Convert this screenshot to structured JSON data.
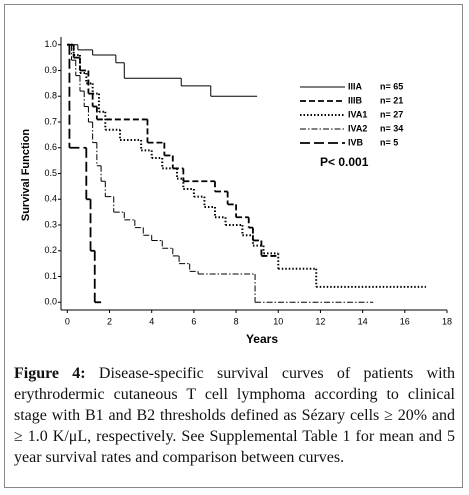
{
  "chart_data": {
    "type": "step",
    "y_label": "Survival Function",
    "x_label": "Years",
    "annotation": "P< 0.001",
    "xlim": [
      -0.3,
      18
    ],
    "ylim": [
      -0.03,
      1.03
    ],
    "xticks": [
      0,
      2,
      4,
      6,
      8,
      10,
      12,
      14,
      16,
      18
    ],
    "yticks": [
      {
        "value": 0,
        "label": "0.0"
      },
      0.1,
      0.2,
      0.3,
      0.4,
      0.5,
      0.6,
      0.7,
      0.8,
      0.9,
      {
        "value": 1,
        "label": "1.0"
      }
    ],
    "series": [
      {
        "name": "IIIA",
        "n": "n= 65",
        "color": "#000",
        "dash": "solid",
        "x": [
          0,
          0.5,
          1.2,
          2.3,
          2.7,
          5.4,
          6.8,
          9
        ],
        "values": [
          1,
          0.98,
          0.96,
          0.93,
          0.87,
          0.84,
          0.8,
          0.8
        ]
      },
      {
        "name": "IIIB",
        "n": "n= 21",
        "color": "#000",
        "dash": "dashed",
        "x": [
          0,
          0.3,
          0.6,
          1.0,
          1.2,
          1.4,
          3.8,
          4.6,
          5.0,
          5.5,
          7.0,
          7.6,
          8.0,
          8.6,
          8.8,
          9.2,
          10
        ],
        "values": [
          1,
          0.95,
          0.9,
          0.81,
          0.76,
          0.71,
          0.62,
          0.57,
          0.52,
          0.47,
          0.43,
          0.38,
          0.33,
          0.29,
          0.24,
          0.18,
          0.18
        ]
      },
      {
        "name": "IVA1",
        "n": "n= 27",
        "color": "#000",
        "dash": "dotted",
        "x": [
          0,
          0.3,
          0.6,
          0.9,
          1.2,
          1.5,
          1.8,
          2.5,
          3.5,
          4.0,
          4.5,
          5.2,
          5.5,
          6.0,
          6.5,
          7.0,
          7.5,
          8.3,
          8.8,
          9.3,
          10,
          11.8,
          17
        ],
        "values": [
          1,
          0.96,
          0.89,
          0.85,
          0.81,
          0.74,
          0.67,
          0.63,
          0.59,
          0.56,
          0.52,
          0.48,
          0.44,
          0.41,
          0.37,
          0.33,
          0.3,
          0.26,
          0.22,
          0.19,
          0.13,
          0.06,
          0.06
        ]
      },
      {
        "name": "IVA2",
        "n": "n= 34",
        "color": "#000",
        "dash": "dashdot",
        "x": [
          0,
          0.2,
          0.4,
          0.6,
          0.8,
          1.0,
          1.2,
          1.4,
          1.6,
          1.8,
          2.2,
          2.7,
          3.2,
          3.6,
          4.0,
          4.5,
          5.0,
          5.3,
          5.8,
          6.2,
          8.9,
          14.5
        ],
        "values": [
          1,
          0.94,
          0.88,
          0.82,
          0.76,
          0.7,
          0.62,
          0.53,
          0.47,
          0.41,
          0.35,
          0.32,
          0.29,
          0.26,
          0.24,
          0.21,
          0.18,
          0.15,
          0.12,
          0.11,
          0,
          0
        ]
      },
      {
        "name": "IVB",
        "n": "n= 5",
        "color": "#000",
        "dash": "longdash",
        "x": [
          0,
          0.1,
          0.9,
          1.1,
          1.3,
          1.6
        ],
        "values": [
          1,
          0.6,
          0.4,
          0.2,
          0,
          0
        ]
      }
    ]
  },
  "caption_label": "Figure 4:",
  "caption": "Disease-specific survival curves of patients with erythrodermic cutaneous T cell lymphoma according to clinical stage with B1 and B2 thresholds defined as Sézary cells ≥ 20% and ≥ 1.0 K/μL, respectively. See Supplemental Table 1 for mean and 5 year survival rates and comparison between curves."
}
